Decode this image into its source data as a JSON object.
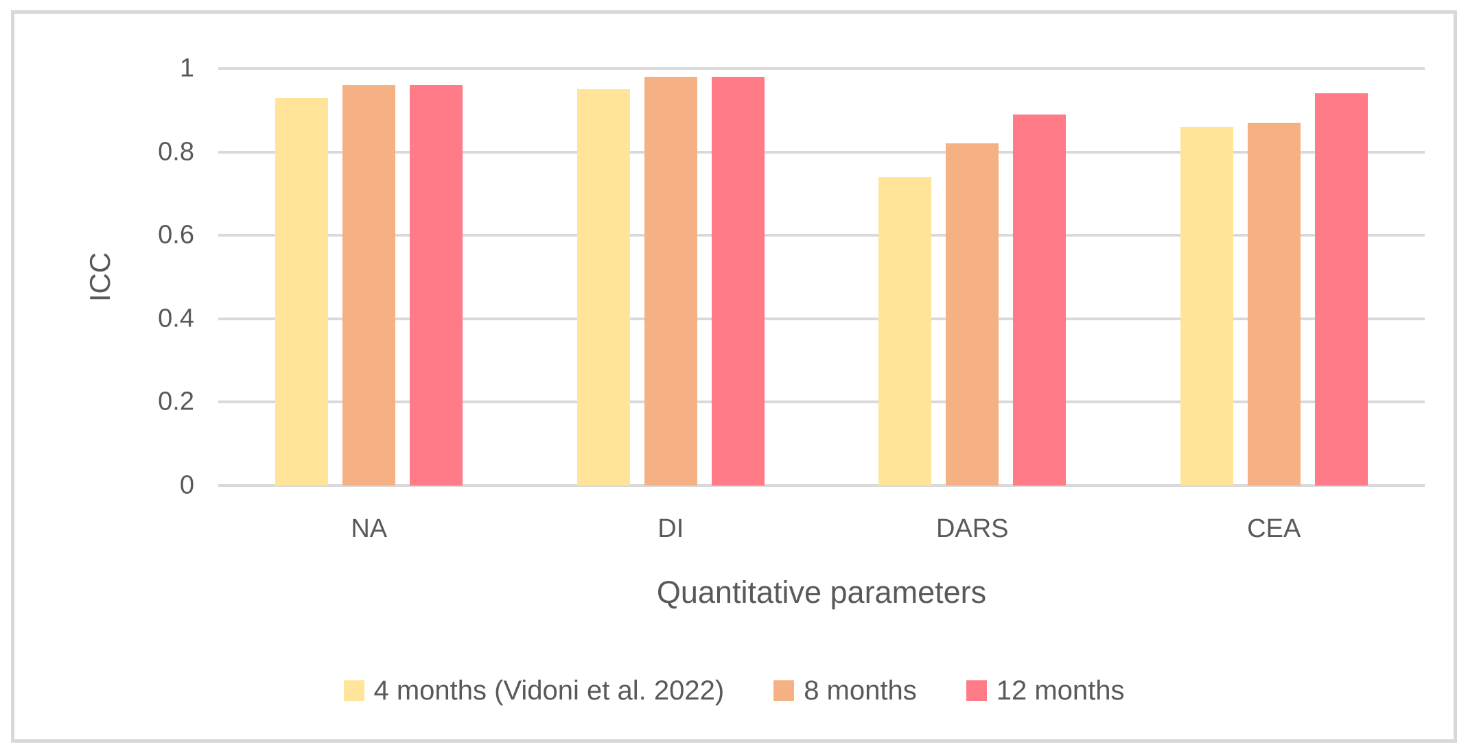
{
  "chart_data": {
    "type": "bar",
    "title": "",
    "xlabel": "Quantitative parameters",
    "ylabel": "ICC",
    "categories": [
      "NA",
      "DI",
      "DARS",
      "CEA"
    ],
    "series": [
      {
        "name": "4 months (Vidoni et al. 2022)",
        "color": "#FFE499",
        "values": [
          0.93,
          0.95,
          0.74,
          0.86
        ]
      },
      {
        "name": "8 months",
        "color": "#F5B183",
        "values": [
          0.96,
          0.98,
          0.82,
          0.87
        ]
      },
      {
        "name": "12 months",
        "color": "#FE7B87",
        "values": [
          0.96,
          0.98,
          0.89,
          0.94
        ]
      }
    ],
    "ylim": [
      0,
      1
    ],
    "yticks": [
      0,
      0.2,
      0.4,
      0.6,
      0.8,
      1
    ],
    "ytick_labels": [
      "0",
      "0.2",
      "0.4",
      "0.6",
      "0.8",
      "1"
    ],
    "grid": true,
    "legend_position": "bottom",
    "colors": {
      "gridline": "#d9d9d9",
      "axis_text": "#595959",
      "frame_border": "#d8d8d8",
      "background": "#ffffff"
    }
  }
}
